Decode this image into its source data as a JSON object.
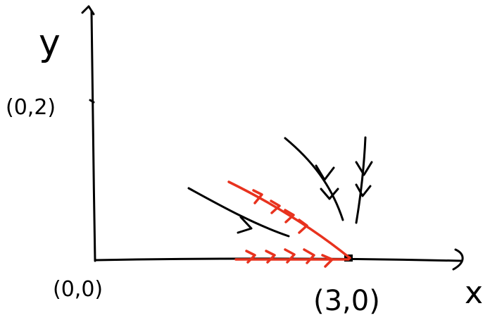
{
  "labels": {
    "y_axis": "y",
    "x_axis": "x",
    "point_y": "(0,2)",
    "origin": "(0,0)",
    "equilibrium": "(3,0)"
  }
}
